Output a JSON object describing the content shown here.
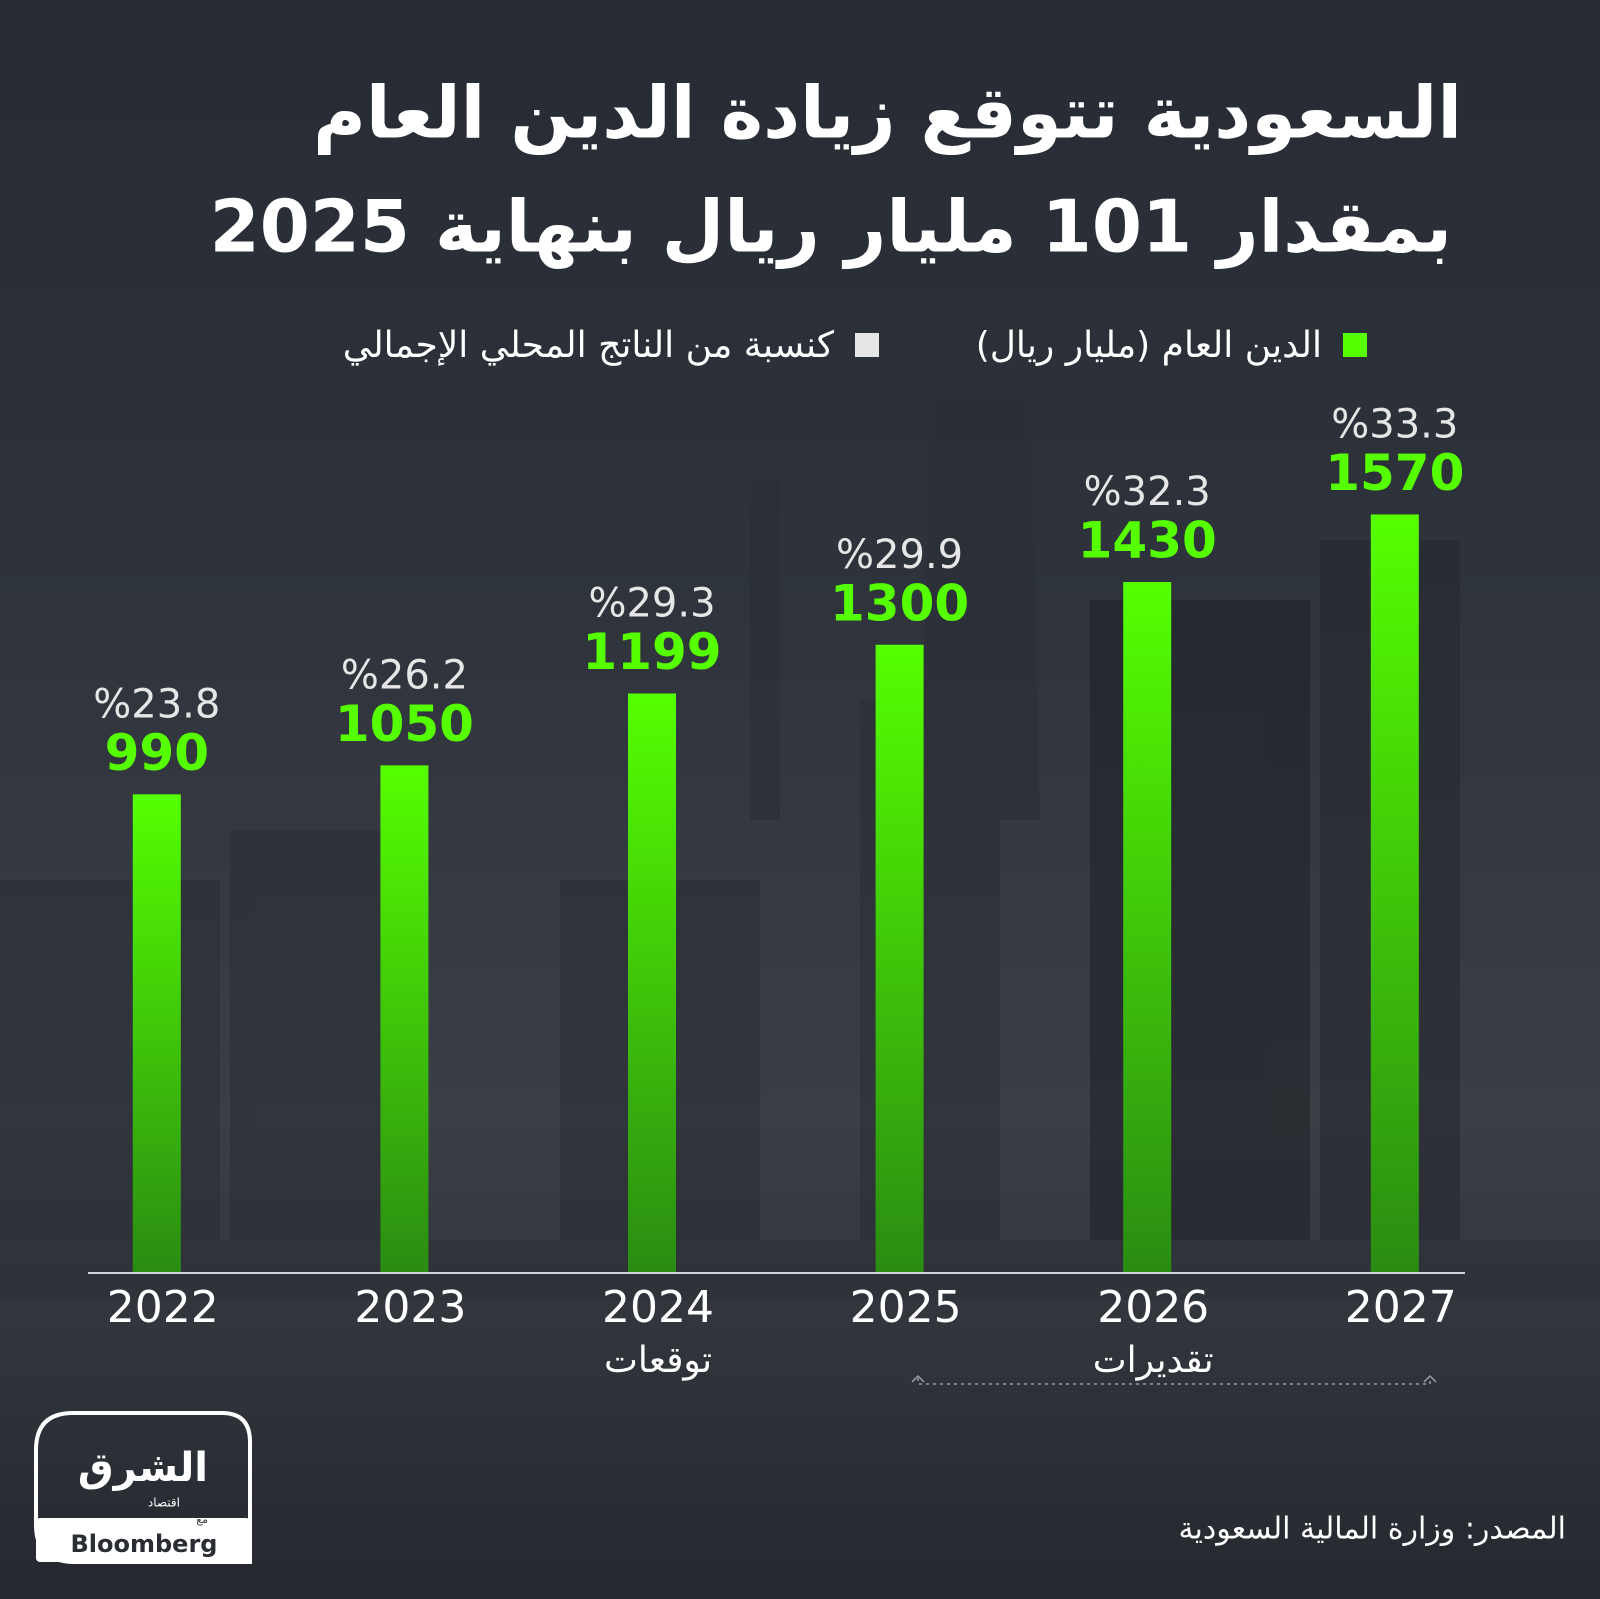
{
  "chart_data": {
    "type": "bar",
    "title": [
      "السعودية تتوقع زيادة الدين العام",
      "بمقدار 101 مليار ريال بنهاية  2025"
    ],
    "categories": [
      "2022",
      "2023",
      "2024",
      "2025",
      "2026",
      "2027"
    ],
    "series": [
      {
        "name": "الدين العام (مليار ريال)",
        "color": "#55ff00",
        "values": [
          990,
          1050,
          1199,
          1300,
          1430,
          1570
        ]
      },
      {
        "name": "كنسبة من الناتج المحلي الإجمالي",
        "color": "#e6e6e6",
        "values": [
          23.8,
          26.2,
          29.3,
          29.9,
          32.3,
          33.3
        ],
        "value_labels": [
          "%23.8",
          "%26.2",
          "%29.3",
          "%29.9",
          "%32.3",
          "%33.3"
        ]
      }
    ],
    "ylim": [
      0,
      1600
    ],
    "annotations": [
      "توقعات",
      "تقديرات"
    ],
    "source": "المصدر: وزارة المالية السعودية",
    "logo": {
      "brand": "الشرق",
      "sub": "اقتصاد",
      "with": "مع",
      "partner": "Bloomberg"
    }
  }
}
